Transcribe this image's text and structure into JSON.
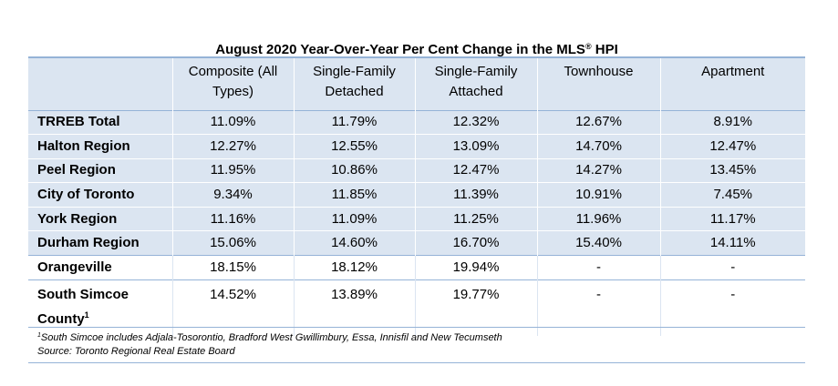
{
  "title": {
    "text": "August 2020 Year-Over-Year Per Cent Change in the MLS",
    "reg": "®",
    "suffix": " HPI"
  },
  "table": {
    "headers": [
      "",
      "Composite (All Types)",
      "Single-Family Detached",
      "Single-Family Attached",
      "Townhouse",
      "Apartment"
    ],
    "rows": [
      {
        "region": "TRREB Total",
        "values": [
          "11.09%",
          "11.79%",
          "12.32%",
          "12.67%",
          "8.91%"
        ]
      },
      {
        "region": "Halton Region",
        "values": [
          "12.27%",
          "12.55%",
          "13.09%",
          "14.70%",
          "12.47%"
        ]
      },
      {
        "region": "Peel Region",
        "values": [
          "11.95%",
          "10.86%",
          "12.47%",
          "14.27%",
          "13.45%"
        ]
      },
      {
        "region": "City of Toronto",
        "values": [
          "9.34%",
          "11.85%",
          "11.39%",
          "10.91%",
          "7.45%"
        ]
      },
      {
        "region": "York Region",
        "values": [
          "11.16%",
          "11.09%",
          "11.25%",
          "11.96%",
          "11.17%"
        ]
      },
      {
        "region": "Durham Region",
        "values": [
          "15.06%",
          "14.60%",
          "16.70%",
          "15.40%",
          "14.11%"
        ]
      },
      {
        "region": "Orangeville",
        "values": [
          "18.15%",
          "18.12%",
          "19.94%",
          "-",
          "-"
        ]
      },
      {
        "region": "South Simcoe County",
        "footnote_mark": "1",
        "values": [
          "14.52%",
          "13.89%",
          "19.77%",
          "-",
          "-"
        ]
      }
    ]
  },
  "notes": {
    "footnote_mark": "1",
    "footnote": "South Simcoe includes Adjala-Tosorontio, Bradford West Gwillimbury, Essa, Innisfil and New Tecumseth",
    "source": "Source: Toronto Regional Real Estate Board"
  },
  "colors": {
    "header_fill": "#dbe5f1",
    "rule": "#95b3d7"
  }
}
